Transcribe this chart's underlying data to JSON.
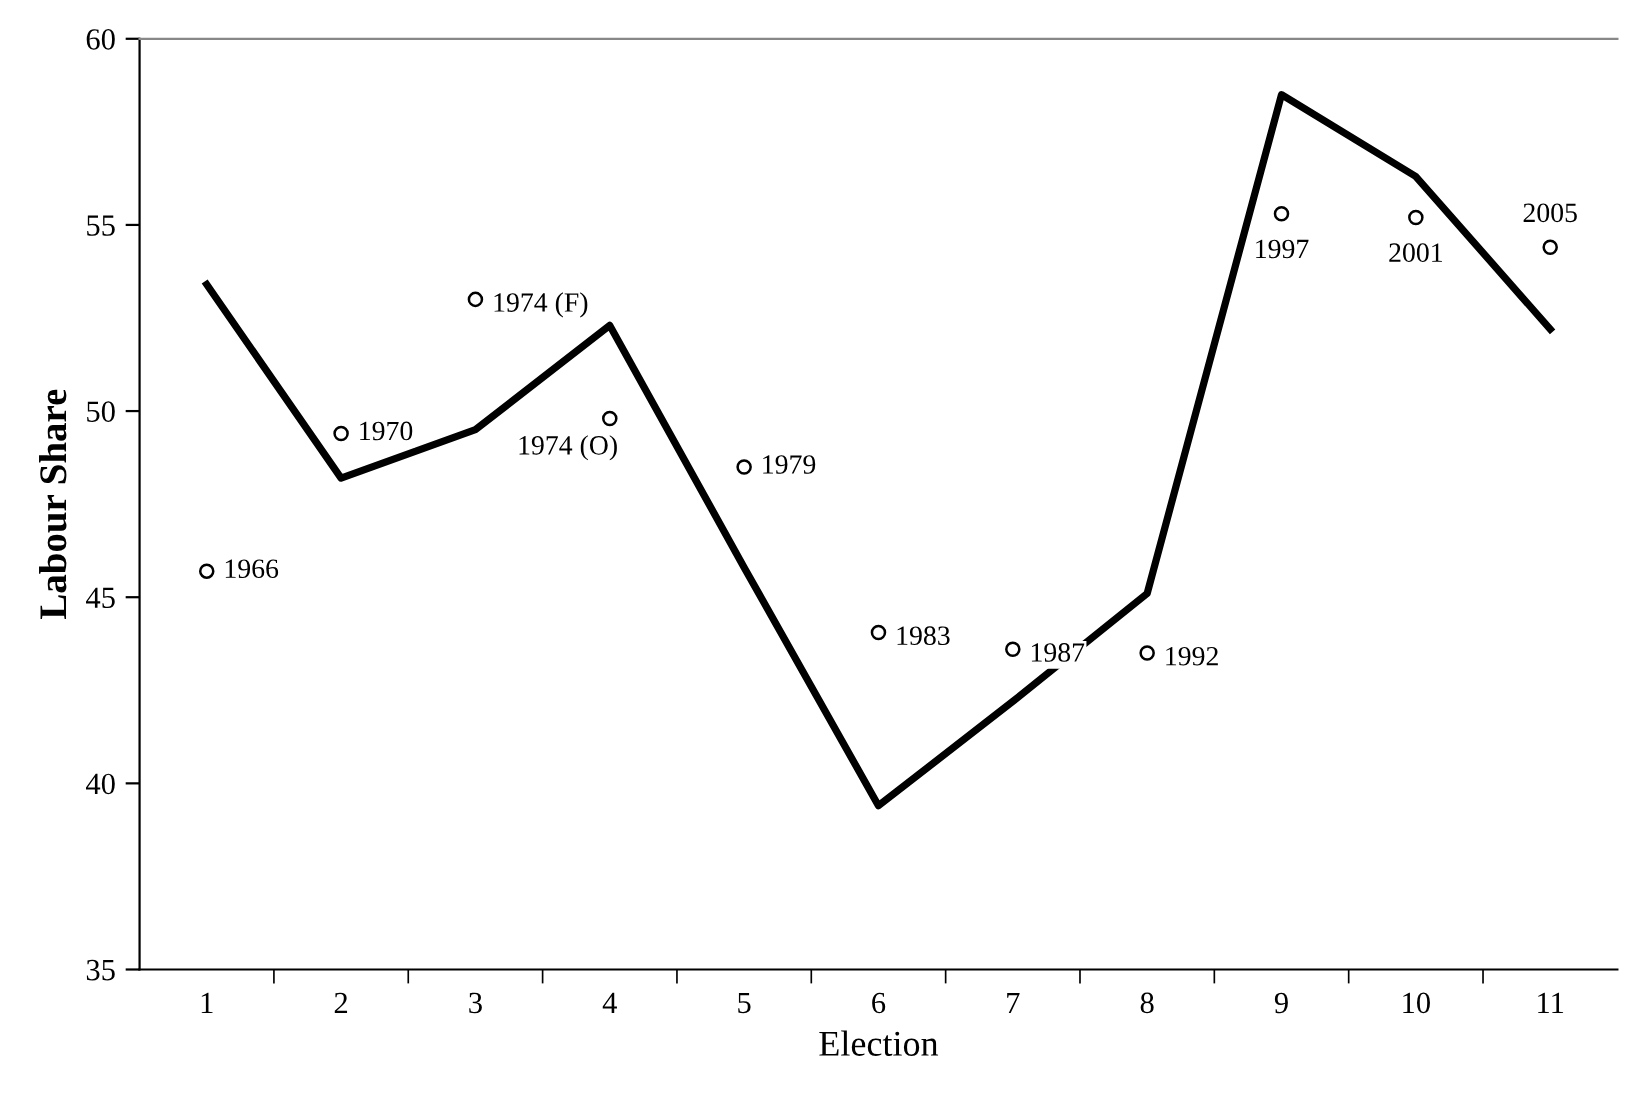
{
  "chart_data": {
    "type": "line",
    "xlabel": "Election",
    "ylabel": "Labour Share",
    "categories": [
      "1",
      "2",
      "3",
      "4",
      "5",
      "6",
      "7",
      "8",
      "9",
      "10",
      "11"
    ],
    "ylim": [
      35,
      60
    ],
    "yticks": [
      35,
      40,
      45,
      50,
      55,
      60
    ],
    "grid": false,
    "legend": false,
    "series": [
      {
        "color": "#000000",
        "marker": "none",
        "line_style": "solid",
        "values": [
          53.4,
          48.2,
          49.5,
          52.3,
          45.8,
          39.4,
          42.2,
          45.1,
          58.5,
          56.3,
          52.2
        ]
      },
      {
        "type": "scatter",
        "color": "#000000",
        "marker": "circle",
        "values": [
          45.7,
          49.4,
          53.0,
          49.8,
          48.5,
          44.05,
          43.6,
          43.5,
          55.3,
          55.2,
          54.4
        ]
      }
    ],
    "annotations": [
      {
        "text": "1966",
        "x": "1",
        "y": 45.7
      },
      {
        "text": "1970",
        "x": "2",
        "y": 49.4
      },
      {
        "text": "1974 (F)",
        "x": "3",
        "y": 53.0
      },
      {
        "text": "1974 (O)",
        "x": "4",
        "y": 49.8
      },
      {
        "text": "1979",
        "x": "5",
        "y": 48.5
      },
      {
        "text": "1983",
        "x": "6",
        "y": 44.05
      },
      {
        "text": "1987",
        "x": "7",
        "y": 43.6
      },
      {
        "text": "1992",
        "x": "8",
        "y": 43.5
      },
      {
        "text": "1997",
        "x": "9",
        "y": 55.3
      },
      {
        "text": "2001",
        "x": "10",
        "y": 55.2
      },
      {
        "text": "2005",
        "x": "11",
        "y": 54.4
      }
    ]
  }
}
